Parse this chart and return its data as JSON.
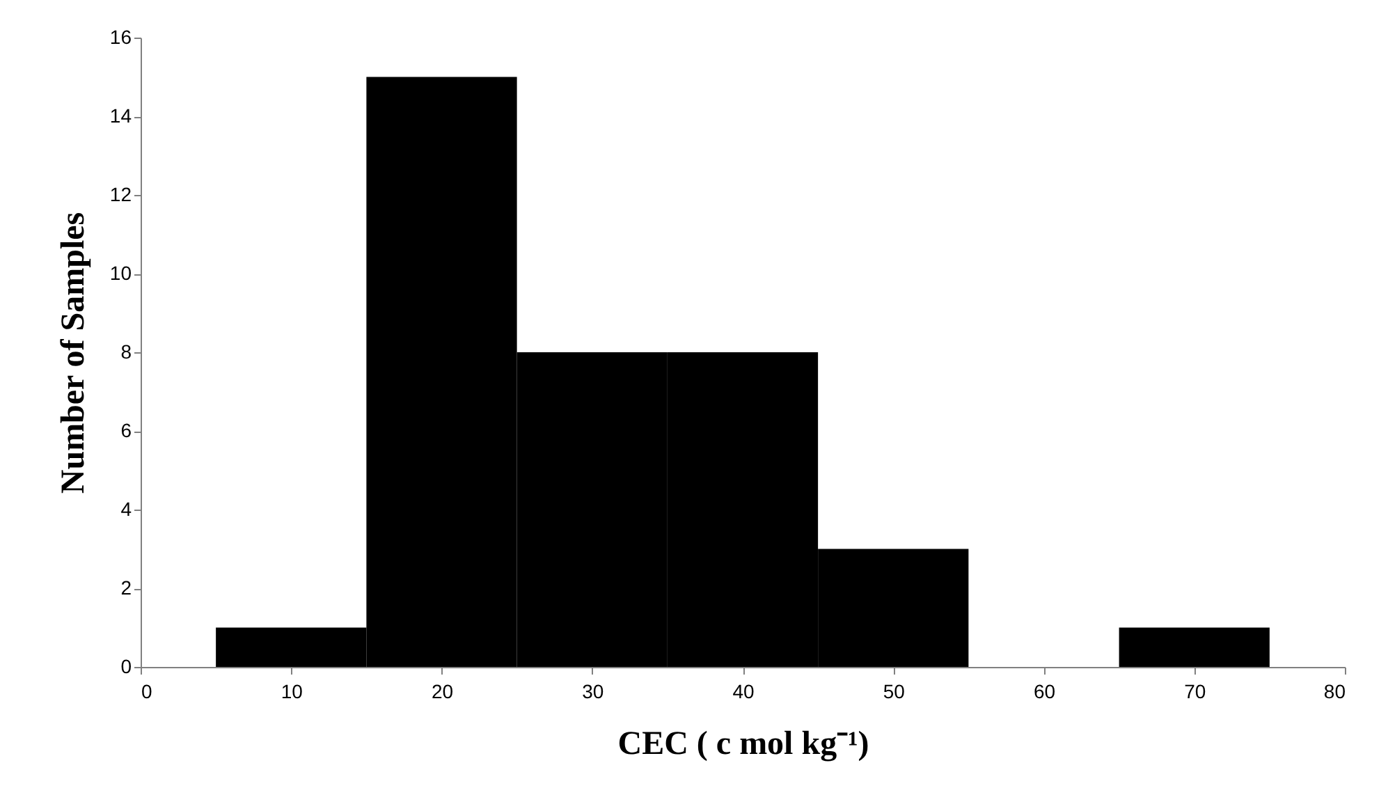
{
  "chart_data": {
    "type": "histogram",
    "xlabel": "CEC ( c mol kg⁻¹)",
    "ylabel": "Number of Samples",
    "bins": [
      5,
      15,
      25,
      35,
      45,
      55,
      65,
      75
    ],
    "values": [
      1,
      15,
      8,
      8,
      3,
      0,
      1
    ],
    "color": "#000000",
    "xlim": [
      0,
      80
    ],
    "xticks": [
      0,
      10,
      20,
      30,
      40,
      50,
      60,
      70,
      80
    ],
    "ylim": [
      0,
      16
    ],
    "yticks": [
      0,
      2,
      4,
      6,
      8,
      10,
      12,
      14,
      16
    ],
    "grid": false
  }
}
